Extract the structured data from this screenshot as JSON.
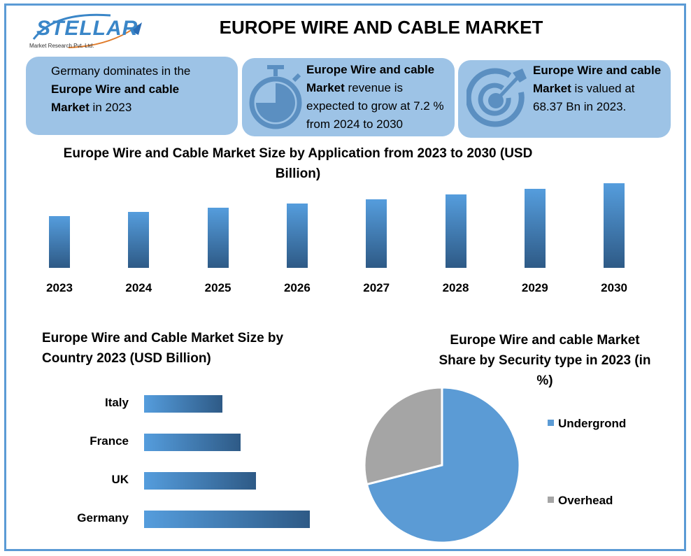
{
  "header": {
    "logo_text": "STELLAR",
    "logo_subtext": "Market Research Pvt. Ltd.",
    "title": "EUROPE WIRE AND CABLE MARKET"
  },
  "cards": [
    {
      "icon": "globe-text-icon",
      "line1": "Germany dominates in the",
      "bold": "Europe Wire and cable",
      "bold2": "Market",
      "rest": " in 2023"
    },
    {
      "icon": "stopwatch-icon",
      "bold": "Europe Wire and cable",
      "bold2": "Market",
      "rest": " revenue is",
      "line3": "expected to grow at 7.2 %",
      "line4": "from 2024 to 2030"
    },
    {
      "icon": "target-icon",
      "bold": "Europe Wire and cable",
      "bold2": "Market",
      "rest": " is valued at",
      "line3": "68.37 Bn in 2023."
    }
  ],
  "colors": {
    "accent": "#5b9bd5",
    "card_bg": "#9dc3e6",
    "icon": "#5b8fc1",
    "bar_top": "#559ddd",
    "bar_bottom": "#2e5a86",
    "pie_blue": "#5b9bd5",
    "pie_gray": "#a5a5a5"
  },
  "chart_data": [
    {
      "type": "bar",
      "title": "Europe Wire and Cable Market Size by Application from 2023 to 2030 (USD Billion)",
      "title_line1": "Europe Wire and Cable Market Size by Application from 2023 to 2030 (USD",
      "title_line2": "Billion)",
      "categories": [
        "2023",
        "2024",
        "2025",
        "2026",
        "2027",
        "2028",
        "2029",
        "2030"
      ],
      "values": [
        68.37,
        73.3,
        78.6,
        84.2,
        90.3,
        96.8,
        103.8,
        111.2
      ],
      "xlabel": "",
      "ylabel": "USD Billion",
      "grid": false,
      "axis_visible": false
    },
    {
      "type": "bar",
      "orientation": "horizontal",
      "title": "Europe Wire and Cable Market Size by Country 2023 (USD Billion)",
      "title_line1": "Europe Wire and Cable Market Size by",
      "title_line2": "Country 2023 (USD Billion)",
      "categories": [
        "Italy",
        "France",
        "UK",
        "Germany"
      ],
      "values": [
        7.2,
        8.9,
        10.3,
        15.3
      ],
      "grid": false,
      "axis_visible": false
    },
    {
      "type": "pie",
      "title": "Europe Wire and cable Market Share by Security type in 2023 (in %)",
      "title_line1": "Europe Wire and cable Market",
      "title_line2": "Share by Security type in 2023 (in",
      "title_line3": "%)",
      "labels": [
        "Undergrond",
        "Overhead"
      ],
      "values": [
        71,
        29
      ],
      "legend_position": "right"
    }
  ]
}
